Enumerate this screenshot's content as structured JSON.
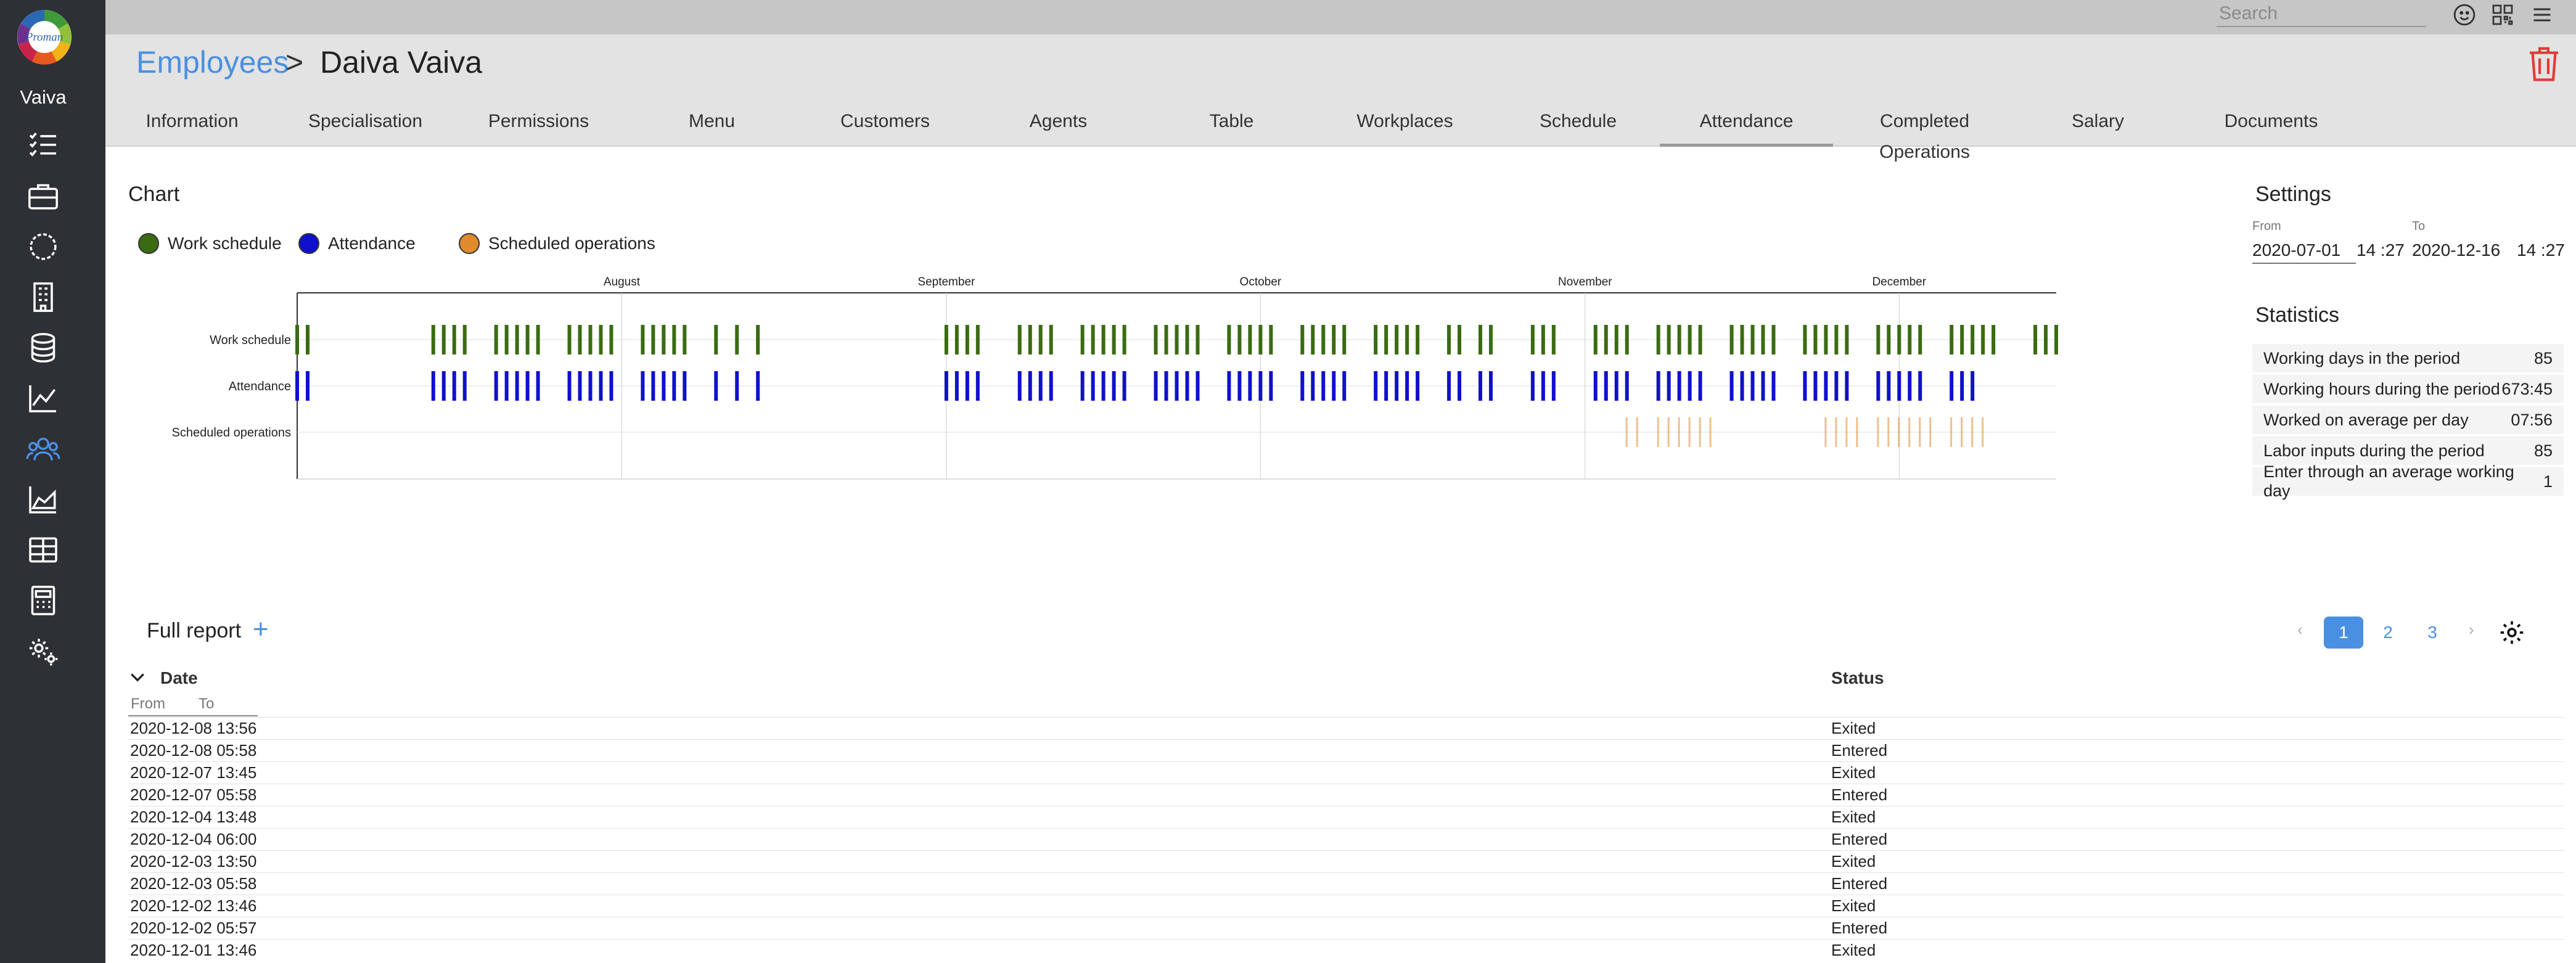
{
  "app": {
    "logo_text": "Proman",
    "user_name": "Vaiva",
    "nav_icons": [
      "checklist-icon",
      "briefcase-icon",
      "circle-dots-icon",
      "building-icon",
      "database-icon",
      "line-chart-icon",
      "users-icon",
      "area-chart-icon",
      "table-icon",
      "calculator-icon",
      "settings-icon"
    ]
  },
  "topbar": {
    "search_placeholder": "Search",
    "icons": [
      "smiley-icon",
      "qr-code-icon",
      "menu-icon"
    ]
  },
  "breadcrumb": {
    "parent": "Employees",
    "separator": ">",
    "current": "Daiva Vaiva"
  },
  "tabs": [
    {
      "label": "Information",
      "active": false
    },
    {
      "label": "Specialisation",
      "active": false
    },
    {
      "label": "Permissions",
      "active": false
    },
    {
      "label": "Menu",
      "active": false
    },
    {
      "label": "Customers",
      "active": false
    },
    {
      "label": "Agents",
      "active": false
    },
    {
      "label": "Table",
      "active": false
    },
    {
      "label": "Workplaces",
      "active": false
    },
    {
      "label": "Schedule",
      "active": false
    },
    {
      "label": "Attendance",
      "active": true
    },
    {
      "label": "Completed Operations",
      "active": false
    },
    {
      "label": "Salary",
      "active": false
    },
    {
      "label": "Documents",
      "active": false
    }
  ],
  "chart_section": {
    "title": "Chart",
    "legend": [
      {
        "label": "Work schedule",
        "color": "#3a6b12"
      },
      {
        "label": "Attendance",
        "color": "#1010cc"
      },
      {
        "label": "Scheduled operations",
        "color": "#e08a2c"
      }
    ]
  },
  "chart_data": {
    "type": "timeline",
    "x_range": [
      "2020-07-01",
      "2020-12-16"
    ],
    "month_labels": [
      {
        "label": "August",
        "date": "2020-08-01"
      },
      {
        "label": "September",
        "date": "2020-09-01"
      },
      {
        "label": "October",
        "date": "2020-10-01"
      },
      {
        "label": "November",
        "date": "2020-11-01"
      },
      {
        "label": "December",
        "date": "2020-12-01"
      }
    ],
    "rows": [
      "Work schedule",
      "Attendance",
      "Scheduled operations"
    ],
    "series": [
      {
        "name": "Work schedule",
        "color": "#3a6b12",
        "days": [
          "2020-07-01",
          "2020-07-02",
          "2020-07-14",
          "2020-07-15",
          "2020-07-16",
          "2020-07-17",
          "2020-07-20",
          "2020-07-21",
          "2020-07-22",
          "2020-07-23",
          "2020-07-24",
          "2020-07-27",
          "2020-07-28",
          "2020-07-29",
          "2020-07-30",
          "2020-07-31",
          "2020-08-03",
          "2020-08-04",
          "2020-08-05",
          "2020-08-06",
          "2020-08-07",
          "2020-08-10",
          "2020-08-12",
          "2020-08-14",
          "2020-09-01",
          "2020-09-02",
          "2020-09-03",
          "2020-09-04",
          "2020-09-08",
          "2020-09-09",
          "2020-09-10",
          "2020-09-11",
          "2020-09-14",
          "2020-09-15",
          "2020-09-16",
          "2020-09-17",
          "2020-09-18",
          "2020-09-21",
          "2020-09-22",
          "2020-09-23",
          "2020-09-24",
          "2020-09-25",
          "2020-09-28",
          "2020-09-29",
          "2020-09-30",
          "2020-10-01",
          "2020-10-02",
          "2020-10-05",
          "2020-10-06",
          "2020-10-07",
          "2020-10-08",
          "2020-10-09",
          "2020-10-12",
          "2020-10-13",
          "2020-10-14",
          "2020-10-15",
          "2020-10-16",
          "2020-10-19",
          "2020-10-20",
          "2020-10-22",
          "2020-10-23",
          "2020-10-27",
          "2020-10-28",
          "2020-10-29",
          "2020-11-02",
          "2020-11-03",
          "2020-11-04",
          "2020-11-05",
          "2020-11-08",
          "2020-11-09",
          "2020-11-10",
          "2020-11-11",
          "2020-11-12",
          "2020-11-15",
          "2020-11-16",
          "2020-11-17",
          "2020-11-18",
          "2020-11-19",
          "2020-11-22",
          "2020-11-23",
          "2020-11-24",
          "2020-11-25",
          "2020-11-26",
          "2020-11-29",
          "2020-11-30",
          "2020-12-01",
          "2020-12-02",
          "2020-12-03",
          "2020-12-06",
          "2020-12-07",
          "2020-12-08",
          "2020-12-09",
          "2020-12-10",
          "2020-12-14",
          "2020-12-15",
          "2020-12-16"
        ]
      },
      {
        "name": "Attendance",
        "color": "#1010cc",
        "days": [
          "2020-07-01",
          "2020-07-02",
          "2020-07-14",
          "2020-07-15",
          "2020-07-16",
          "2020-07-17",
          "2020-07-20",
          "2020-07-21",
          "2020-07-22",
          "2020-07-23",
          "2020-07-24",
          "2020-07-27",
          "2020-07-28",
          "2020-07-29",
          "2020-07-30",
          "2020-07-31",
          "2020-08-03",
          "2020-08-04",
          "2020-08-05",
          "2020-08-06",
          "2020-08-07",
          "2020-08-10",
          "2020-08-12",
          "2020-08-14",
          "2020-09-01",
          "2020-09-02",
          "2020-09-03",
          "2020-09-04",
          "2020-09-08",
          "2020-09-09",
          "2020-09-10",
          "2020-09-11",
          "2020-09-14",
          "2020-09-15",
          "2020-09-16",
          "2020-09-17",
          "2020-09-18",
          "2020-09-21",
          "2020-09-22",
          "2020-09-23",
          "2020-09-24",
          "2020-09-25",
          "2020-09-28",
          "2020-09-29",
          "2020-09-30",
          "2020-10-01",
          "2020-10-02",
          "2020-10-05",
          "2020-10-06",
          "2020-10-07",
          "2020-10-08",
          "2020-10-09",
          "2020-10-12",
          "2020-10-13",
          "2020-10-14",
          "2020-10-15",
          "2020-10-16",
          "2020-10-19",
          "2020-10-20",
          "2020-10-22",
          "2020-10-23",
          "2020-10-27",
          "2020-10-28",
          "2020-10-29",
          "2020-11-02",
          "2020-11-03",
          "2020-11-04",
          "2020-11-05",
          "2020-11-08",
          "2020-11-09",
          "2020-11-10",
          "2020-11-11",
          "2020-11-12",
          "2020-11-15",
          "2020-11-16",
          "2020-11-17",
          "2020-11-18",
          "2020-11-19",
          "2020-11-22",
          "2020-11-23",
          "2020-11-24",
          "2020-11-25",
          "2020-11-26",
          "2020-11-29",
          "2020-11-30",
          "2020-12-01",
          "2020-12-02",
          "2020-12-03",
          "2020-12-06",
          "2020-12-07",
          "2020-12-08"
        ]
      },
      {
        "name": "Scheduled operations",
        "color": "#e08a2c",
        "days": [
          "2020-11-05",
          "2020-11-06",
          "2020-11-08",
          "2020-11-09",
          "2020-11-10",
          "2020-11-11",
          "2020-11-12",
          "2020-11-13",
          "2020-11-24",
          "2020-11-25",
          "2020-11-26",
          "2020-11-27",
          "2020-11-29",
          "2020-11-30",
          "2020-12-01",
          "2020-12-02",
          "2020-12-03",
          "2020-12-04",
          "2020-12-06",
          "2020-12-07",
          "2020-12-08",
          "2020-12-09"
        ]
      }
    ]
  },
  "settings": {
    "title": "Settings",
    "from_label": "From",
    "to_label": "To",
    "from_date": "2020-07-01",
    "from_time": "14 :27",
    "to_date": "2020-12-16",
    "to_time": "14 :27"
  },
  "statistics": {
    "title": "Statistics",
    "rows": [
      {
        "label": "Working days in the period",
        "value": "85"
      },
      {
        "label": "Working hours during the period",
        "value": "673:45"
      },
      {
        "label": "Worked on average per day",
        "value": "07:56"
      },
      {
        "label": "Labor inputs during the period",
        "value": "85"
      },
      {
        "label": "Enter through an average working day",
        "value": "1"
      }
    ]
  },
  "report": {
    "title": "Full report",
    "add_symbol": "+",
    "pagination": {
      "prev": "‹",
      "pages": [
        "1",
        "2",
        "3"
      ],
      "current": "1",
      "next": "›"
    },
    "columns": {
      "date": "Date",
      "status": "Status"
    },
    "date_filter": {
      "from": "From",
      "to": "To"
    },
    "rows": [
      {
        "date": "2020-12-08 13:56",
        "status": "Exited"
      },
      {
        "date": "2020-12-08 05:58",
        "status": "Entered"
      },
      {
        "date": "2020-12-07 13:45",
        "status": "Exited"
      },
      {
        "date": "2020-12-07 05:58",
        "status": "Entered"
      },
      {
        "date": "2020-12-04 13:48",
        "status": "Exited"
      },
      {
        "date": "2020-12-04 06:00",
        "status": "Entered"
      },
      {
        "date": "2020-12-03 13:50",
        "status": "Exited"
      },
      {
        "date": "2020-12-03 05:58",
        "status": "Entered"
      },
      {
        "date": "2020-12-02 13:46",
        "status": "Exited"
      },
      {
        "date": "2020-12-02 05:57",
        "status": "Entered"
      },
      {
        "date": "2020-12-01 13:46",
        "status": "Exited"
      }
    ]
  }
}
